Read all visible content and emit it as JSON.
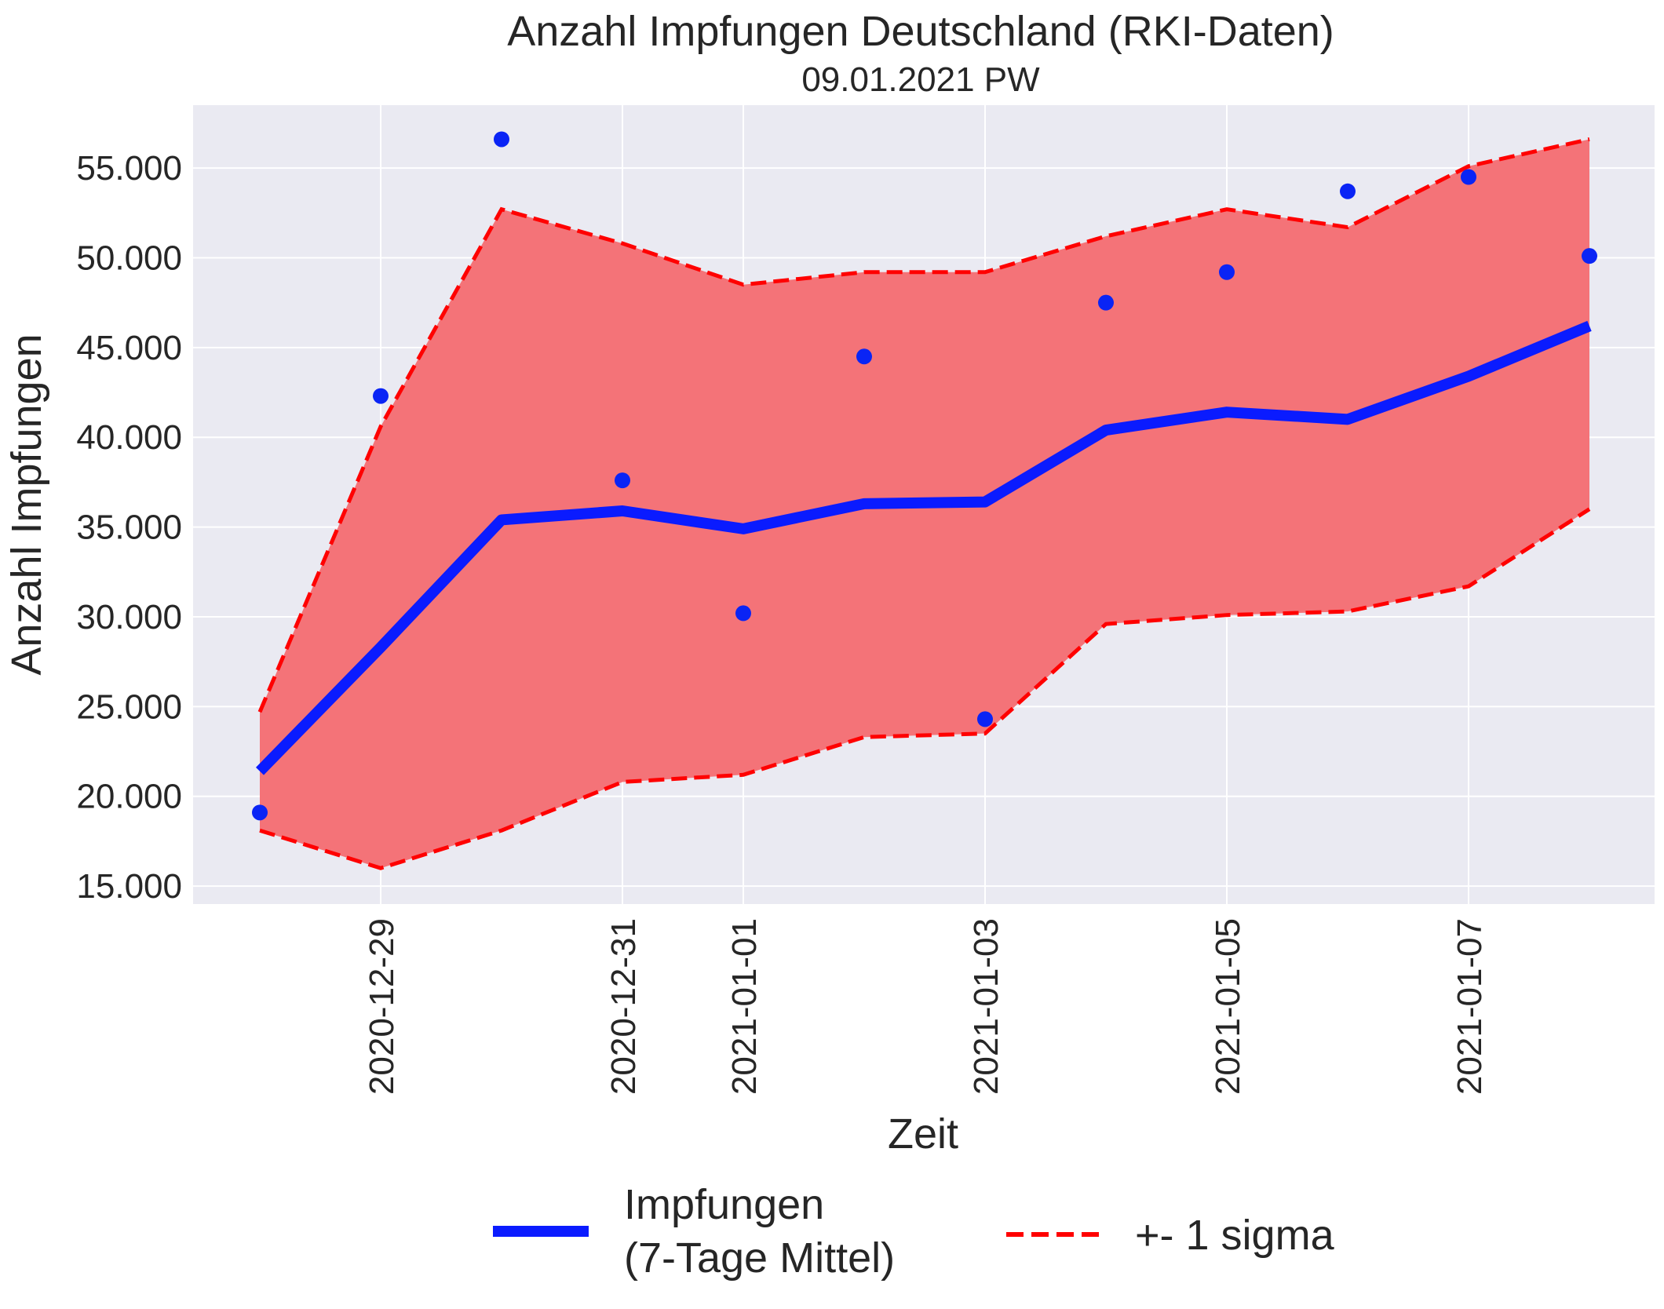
{
  "chart_data": {
    "type": "line",
    "title": "Anzahl Impfungen Deutschland (RKI-Daten)",
    "subtitle": "09.01.2021 PW",
    "xlabel": "Zeit",
    "ylabel": "Anzahl Impfungen",
    "x": [
      "2020-12-28",
      "2020-12-29",
      "2020-12-30",
      "2020-12-31",
      "2021-01-01",
      "2021-01-02",
      "2021-01-03",
      "2021-01-04",
      "2021-01-05",
      "2021-01-06",
      "2021-01-07",
      "2021-01-08"
    ],
    "x_ticks": [
      "2020-12-29",
      "2020-12-31",
      "2021-01-01",
      "2021-01-03",
      "2021-01-05",
      "2021-01-07"
    ],
    "ylim": [
      14000,
      58500
    ],
    "y_ticks": [
      15000,
      20000,
      25000,
      30000,
      35000,
      40000,
      45000,
      50000,
      55000
    ],
    "y_tick_labels": [
      "15.000",
      "20.000",
      "25.000",
      "30.000",
      "35.000",
      "40.000",
      "45.000",
      "50.000",
      "55.000"
    ],
    "grid": true,
    "legend_position": "bottom-center",
    "colors": {
      "mean": "#0a1bff",
      "sigma": "#ff0000",
      "band": "#f47378",
      "points": "#0a24f5",
      "background": "#eaeaf2",
      "grid": "#ffffff"
    },
    "series": [
      {
        "name": "Impfungen\n(7-Tage Mittel)",
        "type": "line",
        "values": [
          21400,
          28300,
          35400,
          35900,
          34900,
          36300,
          36400,
          40400,
          41400,
          41000,
          43400,
          46200
        ]
      },
      {
        "name": "+- 1 sigma",
        "type": "dashed-band",
        "upper": [
          24700,
          40600,
          52700,
          50800,
          48500,
          49200,
          49200,
          51200,
          52700,
          51700,
          55100,
          56600
        ],
        "lower": [
          18100,
          16000,
          18100,
          20800,
          21200,
          23300,
          23500,
          29600,
          30100,
          30300,
          31700,
          36000
        ]
      },
      {
        "name": "",
        "type": "scatter",
        "values": [
          19100,
          42300,
          56600,
          37600,
          30200,
          44500,
          24300,
          47500,
          49200,
          53700,
          54500,
          50100
        ]
      }
    ],
    "legend": [
      {
        "label_line1": "Impfungen",
        "label_line2": "(7-Tage Mittel)"
      },
      {
        "label_line1": "+- 1 sigma"
      }
    ]
  }
}
